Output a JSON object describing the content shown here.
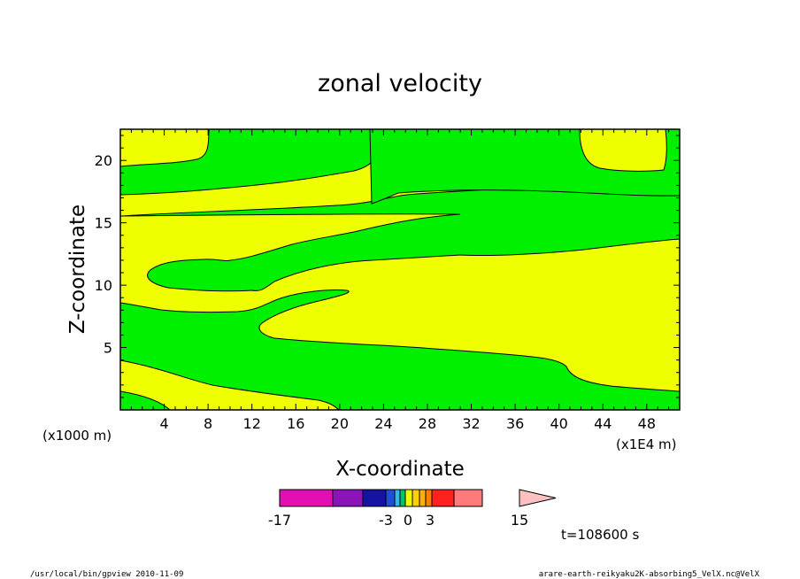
{
  "chart_data": {
    "type": "contour",
    "title": "zonal velocity",
    "xlabel": "X-coordinate",
    "ylabel": "Z-coordinate",
    "x_unit": "(x1E4 m)",
    "z_unit": "(x1000 m)",
    "xlim": [
      0,
      51
    ],
    "ylim": [
      0,
      22.5
    ],
    "x_ticks": [
      4,
      8,
      12,
      16,
      20,
      24,
      28,
      32,
      36,
      40,
      44,
      48
    ],
    "y_ticks": [
      5,
      10,
      15,
      20
    ],
    "regions": [
      {
        "value_band": "0 to 3",
        "color": "#f0ff00"
      },
      {
        "value_band": "-3 to 0",
        "color": "#00f000"
      }
    ],
    "colorbar": {
      "ticks": [
        "-17",
        "-3",
        "0",
        "3",
        "15"
      ],
      "colors": [
        "#e20fb4",
        "#8a14b8",
        "#1414a0",
        "#1f4fd8",
        "#30b7f0",
        "#00c070",
        "#f0ff00",
        "#ffd000",
        "#ffb000",
        "#ff8000",
        "#ff2020",
        "#ff7a7a"
      ],
      "extend_color": "#ffc0c0"
    },
    "time_label": "t=108600 s"
  },
  "footer": {
    "left": "/usr/local/bin/gpview  2010-11-09",
    "right": "arare-earth-reikyaku2K-absorbing5_VelX.nc@VelX"
  }
}
